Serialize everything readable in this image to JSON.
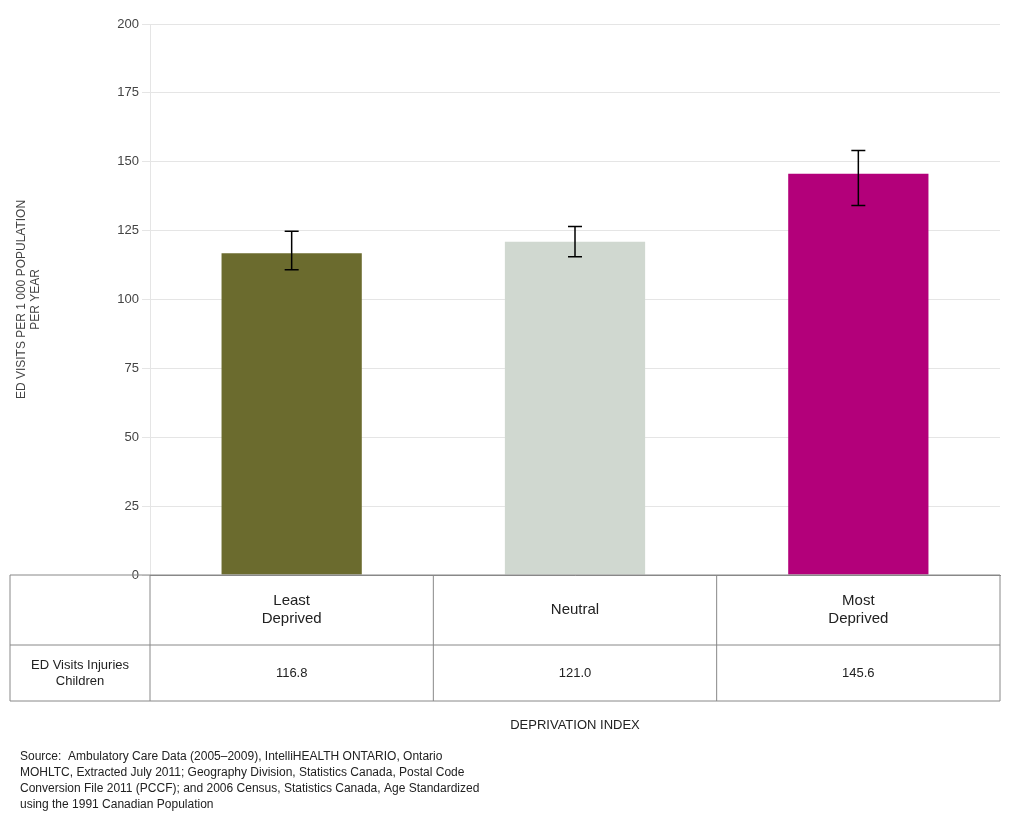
{
  "chart_data": {
    "type": "bar",
    "categories": [
      "Least\nDeprived",
      "Neutral",
      "Most\nDeprived"
    ],
    "values": [
      116.8,
      121.0,
      145.6
    ],
    "errors_upper": [
      8.0,
      5.5,
      8.5
    ],
    "errors_lower": [
      6.0,
      5.5,
      11.5
    ],
    "colors": [
      "#6b6b2e",
      "#d0d8d0",
      "#b3007a"
    ],
    "ylabel": "ED VISITS PER 1 000 POPULATION\nPER YEAR",
    "xlabel": "DEPRIVATION INDEX",
    "ylim": [
      0,
      200
    ],
    "yticks": [
      0,
      25,
      50,
      75,
      100,
      125,
      150,
      175,
      200
    ],
    "grid": true,
    "table_row_label": "ED Visits Injuries\nChildren",
    "table_values": [
      "116.8",
      "121.0",
      "145.6"
    ],
    "source": "Source:  Ambulatory Care Data (2005–2009), IntelliHEALTH ONTARIO, Ontario\nMOHLTC, Extracted July 2011; Geography Division, Statistics Canada, Postal Code\nConversion File 2011 (PCCF); and 2006 Census, Statistics Canada, Age Standardized\nusing the 1991 Canadian Population"
  }
}
